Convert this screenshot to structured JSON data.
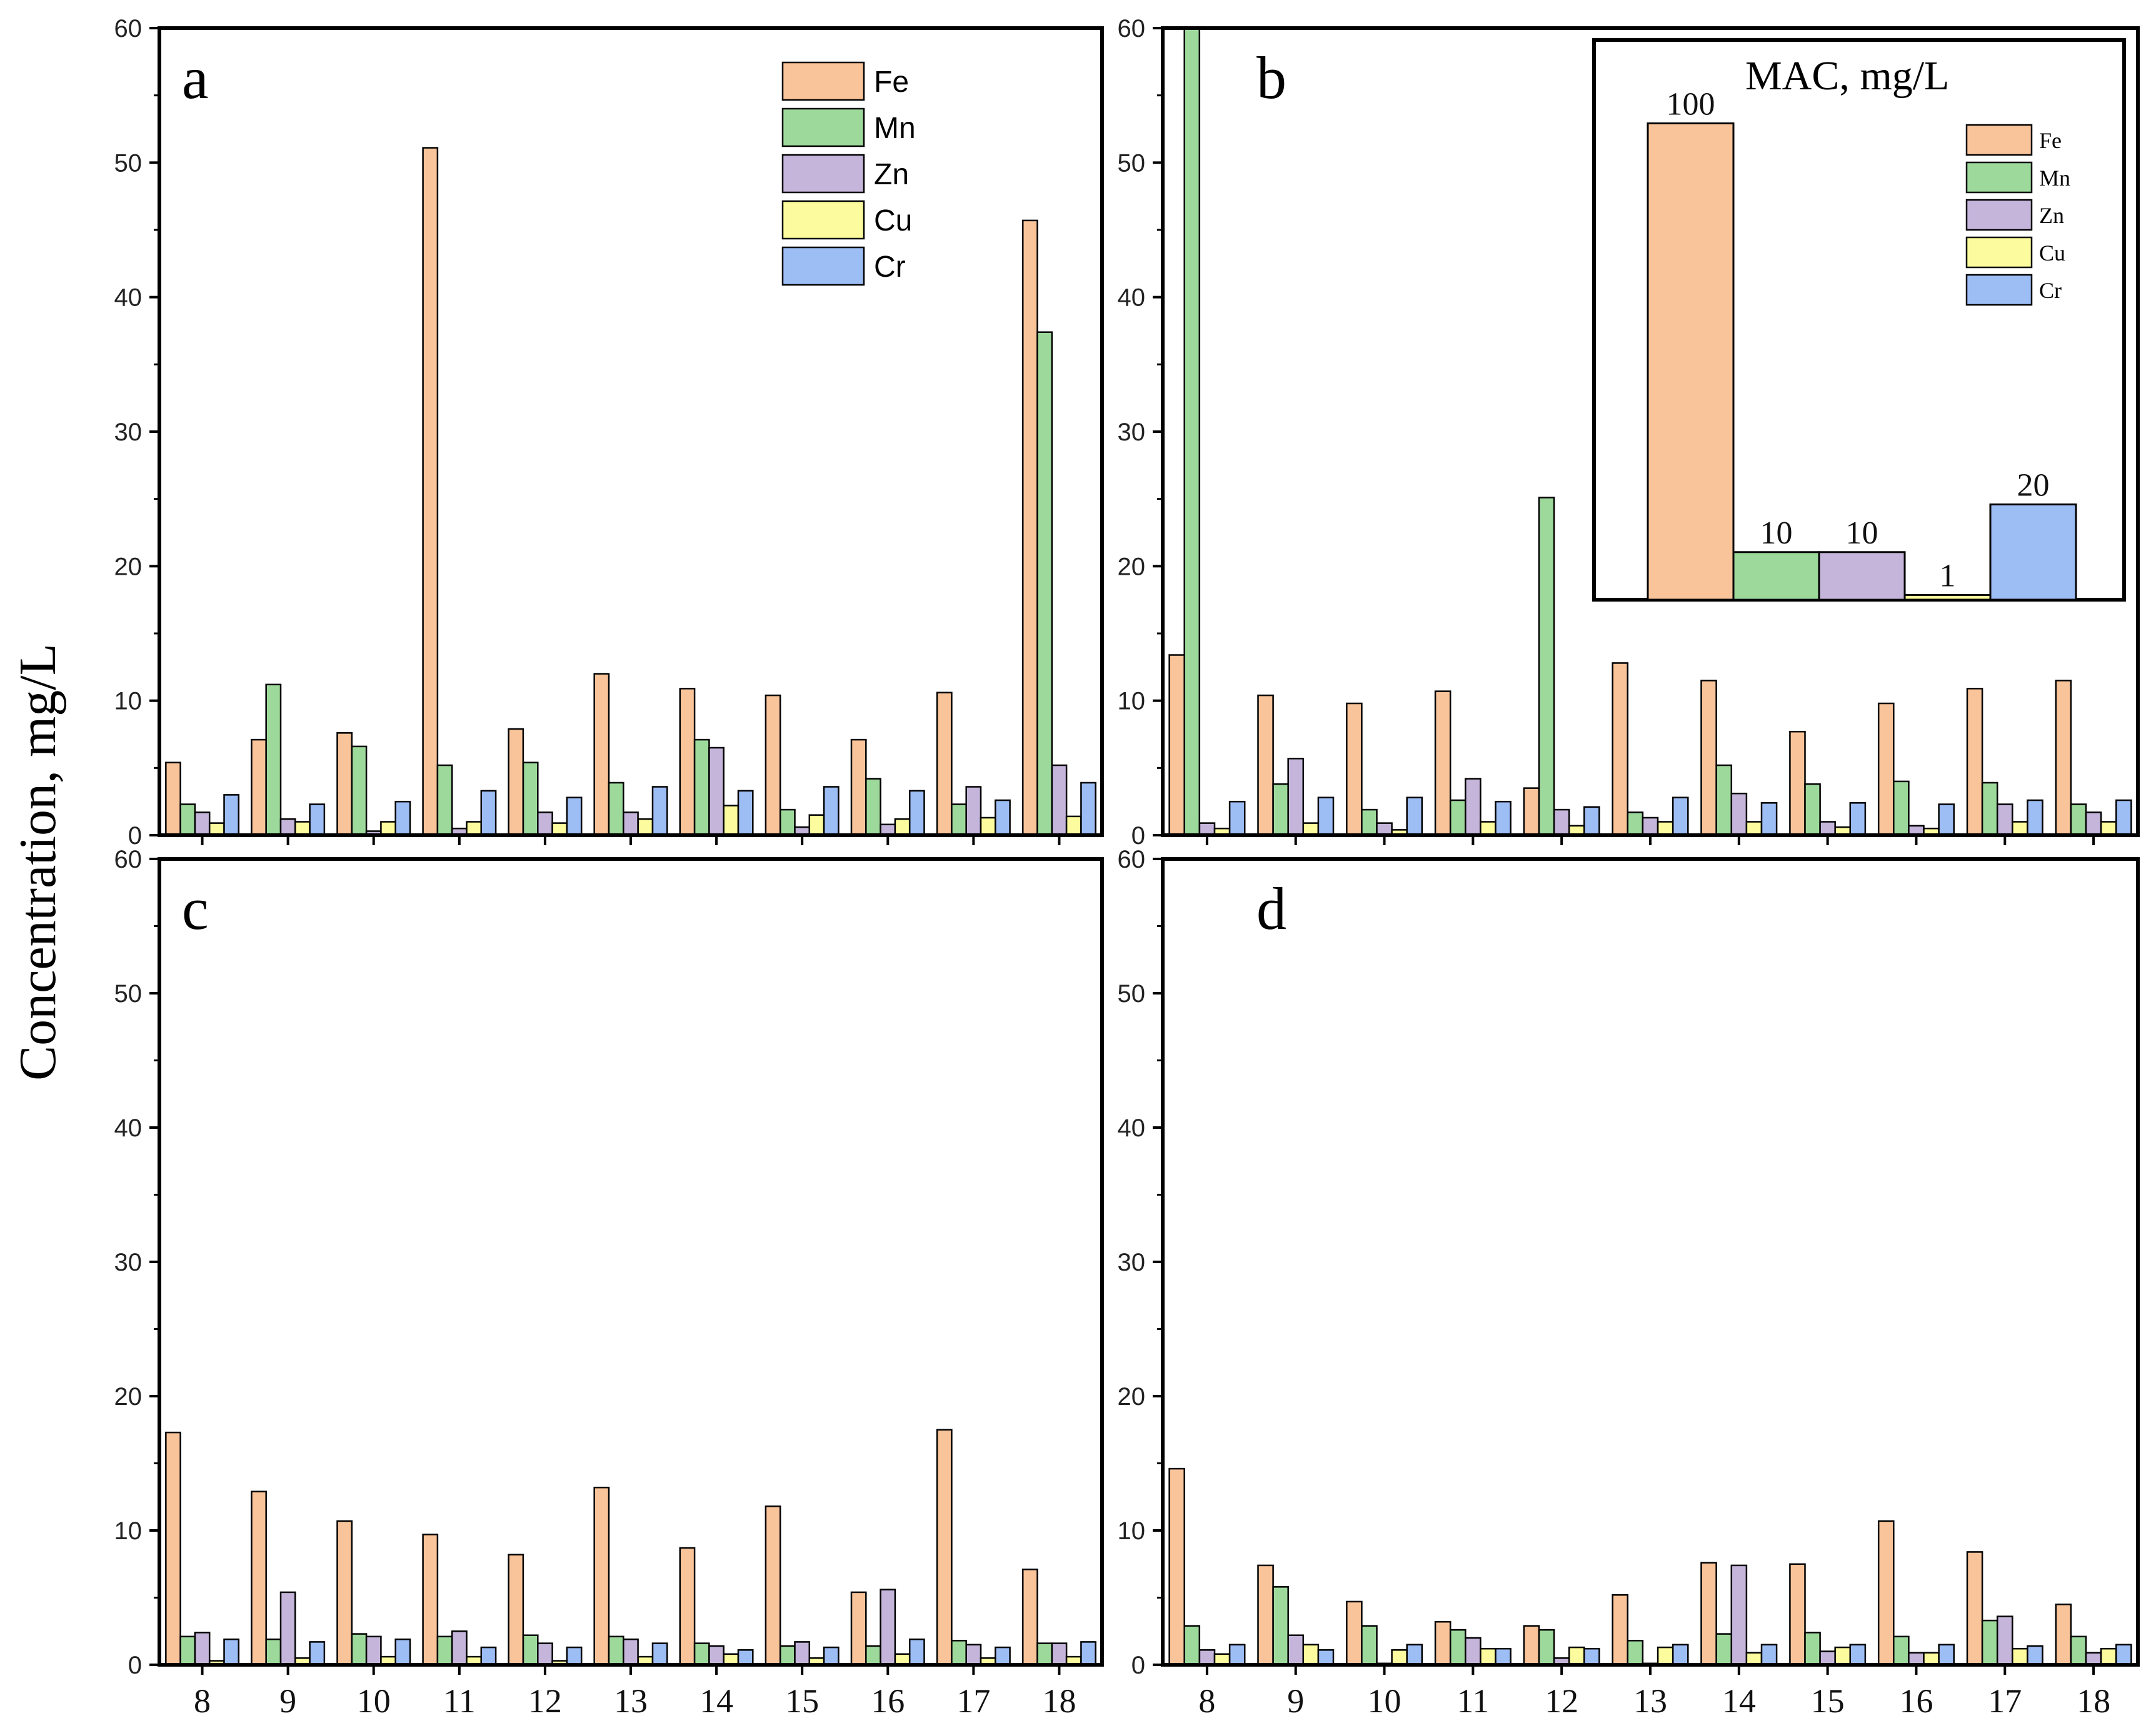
{
  "chart_data": {
    "type": "bar",
    "ylabel": "Concentration, mg/L",
    "xlabel": "",
    "ylim": [
      0,
      60
    ],
    "yticks": [
      "0",
      "10",
      "20",
      "30",
      "40",
      "50",
      "60"
    ],
    "categories": [
      "8",
      "9",
      "10",
      "11",
      "12",
      "13",
      "14",
      "15",
      "16",
      "17",
      "18"
    ],
    "elements": [
      "Fe",
      "Mn",
      "Zn",
      "Cu",
      "Cr"
    ],
    "colors": {
      "Fe": "#F9C49A",
      "Mn": "#9ED99C",
      "Zn": "#C5B5DB",
      "Cu": "#FCFC9E",
      "Cr": "#9DBDF5"
    },
    "legend": {
      "location": "top-right",
      "labels": [
        "Fe",
        "Mn",
        "Zn",
        "Cu",
        "Cr"
      ]
    },
    "panels": [
      {
        "label": "a",
        "series": [
          {
            "name": "Fe",
            "values": [
              5.4,
              7.1,
              7.6,
              51.1,
              7.9,
              12.0,
              10.9,
              10.4,
              7.1,
              10.6,
              45.7
            ]
          },
          {
            "name": "Mn",
            "values": [
              2.3,
              11.2,
              6.6,
              5.2,
              5.4,
              3.9,
              7.1,
              1.9,
              4.2,
              2.3,
              37.4
            ]
          },
          {
            "name": "Zn",
            "values": [
              1.7,
              1.2,
              0.3,
              0.5,
              1.7,
              1.7,
              6.5,
              0.6,
              0.8,
              3.6,
              5.2
            ]
          },
          {
            "name": "Cu",
            "values": [
              0.9,
              1.0,
              1.0,
              1.0,
              0.9,
              1.2,
              2.2,
              1.5,
              1.2,
              1.3,
              1.4
            ]
          },
          {
            "name": "Cr",
            "values": [
              3.0,
              2.3,
              2.5,
              3.3,
              2.8,
              3.6,
              3.3,
              3.6,
              3.3,
              2.6,
              3.9
            ]
          }
        ]
      },
      {
        "label": "b",
        "series": [
          {
            "name": "Fe",
            "values": [
              13.4,
              10.4,
              9.8,
              10.7,
              3.5,
              12.8,
              11.5,
              7.7,
              9.8,
              10.9,
              11.5
            ]
          },
          {
            "name": "Mn",
            "values": [
              61.0,
              3.8,
              1.9,
              2.6,
              25.1,
              1.7,
              5.2,
              3.8,
              4.0,
              3.9,
              2.3
            ]
          },
          {
            "name": "Zn",
            "values": [
              0.9,
              5.7,
              0.9,
              4.2,
              1.9,
              1.3,
              3.1,
              1.0,
              0.7,
              2.3,
              1.7
            ]
          },
          {
            "name": "Cu",
            "values": [
              0.5,
              0.9,
              0.4,
              1.0,
              0.7,
              1.0,
              1.0,
              0.6,
              0.5,
              1.0,
              1.0
            ]
          },
          {
            "name": "Cr",
            "values": [
              2.5,
              2.8,
              2.8,
              2.5,
              2.1,
              2.8,
              2.4,
              2.4,
              2.3,
              2.6,
              2.6
            ]
          }
        ],
        "inset": {
          "title": "MAC, mg/L",
          "type": "bar",
          "categories": [
            "Fe",
            "Mn",
            "Zn",
            "Cu",
            "Cr"
          ],
          "values": [
            100,
            10,
            10,
            1,
            20
          ],
          "value_labels": [
            "100",
            "10",
            "10",
            "1",
            "20"
          ],
          "ylim": [
            0,
            112
          ]
        }
      },
      {
        "label": "c",
        "series": [
          {
            "name": "Fe",
            "values": [
              17.3,
              12.9,
              10.7,
              9.7,
              8.2,
              13.2,
              8.7,
              11.8,
              5.4,
              17.5,
              7.1
            ]
          },
          {
            "name": "Mn",
            "values": [
              2.1,
              1.9,
              2.3,
              2.1,
              2.2,
              2.1,
              1.6,
              1.4,
              1.4,
              1.8,
              1.6
            ]
          },
          {
            "name": "Zn",
            "values": [
              2.4,
              5.4,
              2.1,
              2.5,
              1.6,
              1.9,
              1.4,
              1.7,
              5.6,
              1.5,
              1.6
            ]
          },
          {
            "name": "Cu",
            "values": [
              0.3,
              0.5,
              0.6,
              0.6,
              0.3,
              0.6,
              0.8,
              0.5,
              0.8,
              0.5,
              0.6
            ]
          },
          {
            "name": "Cr",
            "values": [
              1.9,
              1.7,
              1.9,
              1.3,
              1.3,
              1.6,
              1.1,
              1.3,
              1.9,
              1.3,
              1.7
            ]
          }
        ]
      },
      {
        "label": "d",
        "series": [
          {
            "name": "Fe",
            "values": [
              14.6,
              7.4,
              4.7,
              3.2,
              2.9,
              5.2,
              7.6,
              7.5,
              10.7,
              8.4,
              4.5
            ]
          },
          {
            "name": "Mn",
            "values": [
              2.9,
              5.8,
              2.9,
              2.6,
              2.6,
              1.8,
              2.3,
              2.4,
              2.1,
              3.3,
              2.1
            ]
          },
          {
            "name": "Zn",
            "values": [
              1.1,
              2.2,
              0.1,
              2.0,
              0.5,
              0.1,
              7.4,
              1.0,
              0.9,
              3.6,
              0.9
            ]
          },
          {
            "name": "Cu",
            "values": [
              0.8,
              1.5,
              1.1,
              1.2,
              1.3,
              1.3,
              0.9,
              1.3,
              0.9,
              1.2,
              1.2
            ]
          },
          {
            "name": "Cr",
            "values": [
              1.5,
              1.1,
              1.5,
              1.2,
              1.2,
              1.5,
              1.5,
              1.5,
              1.5,
              1.4,
              1.5
            ]
          }
        ]
      }
    ]
  }
}
